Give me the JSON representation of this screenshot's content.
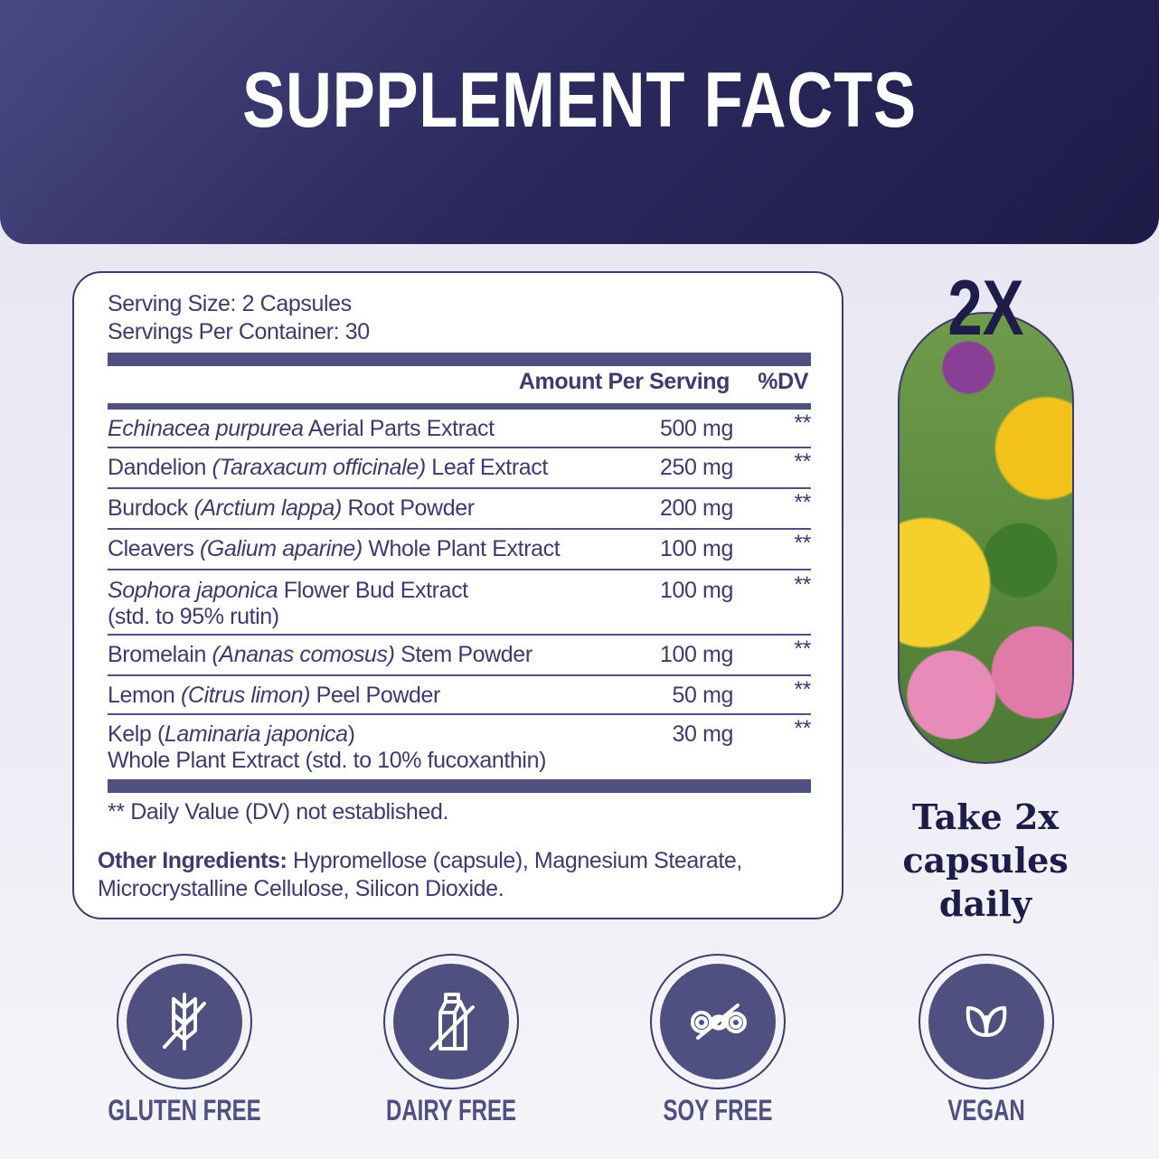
{
  "title": "SUPPLEMENT FACTS",
  "serving_size": "Serving Size: 2 Capsules",
  "servings_per_container": "Servings Per Container: 30",
  "header": {
    "amount": "Amount Per Serving",
    "dv": "%DV"
  },
  "rows": [
    {
      "pre": "",
      "it": "Echinacea purpurea",
      "post": " Aerial Parts Extract",
      "line2": "",
      "amount": "500 mg",
      "dv": "**"
    },
    {
      "pre": "Dandelion ",
      "it": "(Taraxacum officinale)",
      "post": " Leaf Extract",
      "line2": "",
      "amount": "250 mg",
      "dv": "**"
    },
    {
      "pre": "Burdock ",
      "it": "(Arctium lappa)",
      "post": " Root Powder",
      "line2": "",
      "amount": "200 mg",
      "dv": "**"
    },
    {
      "pre": "Cleavers ",
      "it": "(Galium aparine)",
      "post": " Whole Plant Extract",
      "line2": "",
      "amount": "100 mg",
      "dv": "**"
    },
    {
      "pre": "",
      "it": "Sophora japonica",
      "post": " Flower Bud Extract",
      "line2": "(std. to 95% rutin)",
      "amount": "100 mg",
      "dv": "**"
    },
    {
      "pre": "Bromelain ",
      "it": "(Ananas comosus)",
      "post": " Stem Powder",
      "line2": "",
      "amount": "100 mg",
      "dv": "**"
    },
    {
      "pre": "Lemon ",
      "it": "(Citrus limon)",
      "post": " Peel Powder",
      "line2": "",
      "amount": "50 mg",
      "dv": "**"
    },
    {
      "pre": "Kelp (",
      "it": "Laminaria japonica",
      "post": ")",
      "line2": "Whole Plant Extract (std. to 10% fucoxanthin)",
      "amount": "30 mg",
      "dv": "**"
    }
  ],
  "footnote": "** Daily Value (DV) not established.",
  "other_label": "Other Ingredients:",
  "other_text": " Hypromellose (capsule), Magnesium Stearate,",
  "other_text2": "Microcrystalline Cellulose, Silicon Dioxide.",
  "dose": {
    "badge": "2X",
    "lines": [
      "Take 2x",
      "capsules",
      "daily"
    ]
  },
  "badges": [
    {
      "label": "GLUTEN FREE",
      "icon": "wheat-crossed-icon"
    },
    {
      "label": "DAIRY FREE",
      "icon": "milk-carton-crossed-icon"
    },
    {
      "label": "SOY FREE",
      "icon": "soybean-crossed-icon"
    },
    {
      "label": "VEGAN",
      "icon": "leaf-icon"
    }
  ],
  "colors": {
    "primary": "#4f4f80",
    "dark": "#1e1c48",
    "text": "#3d3b6e"
  }
}
